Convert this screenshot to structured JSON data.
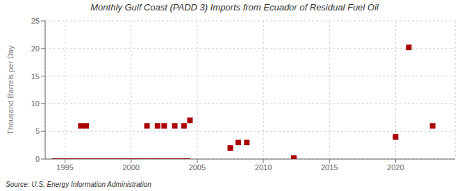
{
  "chart_data": {
    "type": "scatter",
    "title": "Monthly Gulf Coast (PADD 3) Imports from Ecuador of Residual Fuel Oil",
    "ylabel": "Thousand Barrels per Day",
    "annotation": "Source: U.S. Energy Information Administration",
    "xlim": [
      1993.5,
      2024.5
    ],
    "xticks": [
      1995,
      2000,
      2005,
      2010,
      2015,
      2020
    ],
    "ylim": [
      0,
      25
    ],
    "yticks": [
      0,
      5,
      10,
      15,
      20,
      25
    ],
    "grid": true,
    "series": [
      {
        "type": "line",
        "color": "#8b0000",
        "x": [
          1994.0,
          2004.5
        ],
        "values": [
          0.0,
          0.0
        ]
      },
      {
        "type": "scatter",
        "color": "#aa0000",
        "marker": "square",
        "x": [
          1996.2,
          1996.6,
          2001.2,
          2002.0,
          2002.5,
          2003.3,
          2004.0,
          2004.45,
          2007.5,
          2008.1,
          2008.75,
          2012.3,
          2020.0,
          2021.0,
          2022.8
        ],
        "values": [
          6.0,
          6.0,
          6.0,
          6.0,
          6.0,
          6.0,
          6.0,
          7.0,
          2.0,
          3.0,
          3.0,
          0.2,
          4.0,
          20.2,
          6.0
        ]
      }
    ]
  }
}
